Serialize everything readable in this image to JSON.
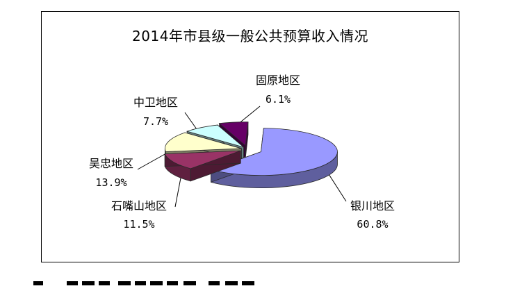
{
  "chart_data": {
    "type": "pie",
    "title": "2014年市县级一般公共预算收入情况",
    "slices": [
      {
        "label": "银川地区",
        "value": 60.8,
        "value_text": "60.8%",
        "color": "#9999FF"
      },
      {
        "label": "石嘴山地区",
        "value": 11.5,
        "value_text": "11.5%",
        "color": "#993366"
      },
      {
        "label": "吴忠地区",
        "value": 13.9,
        "value_text": "13.9%",
        "color": "#FFFFCC"
      },
      {
        "label": "中卫地区",
        "value": 7.7,
        "value_text": "7.7%",
        "color": "#CCFFFF"
      },
      {
        "label": "固原地区",
        "value": 6.1,
        "value_text": "6.1%",
        "color": "#660066"
      }
    ],
    "style": "3d-exploded",
    "legend": "none"
  }
}
